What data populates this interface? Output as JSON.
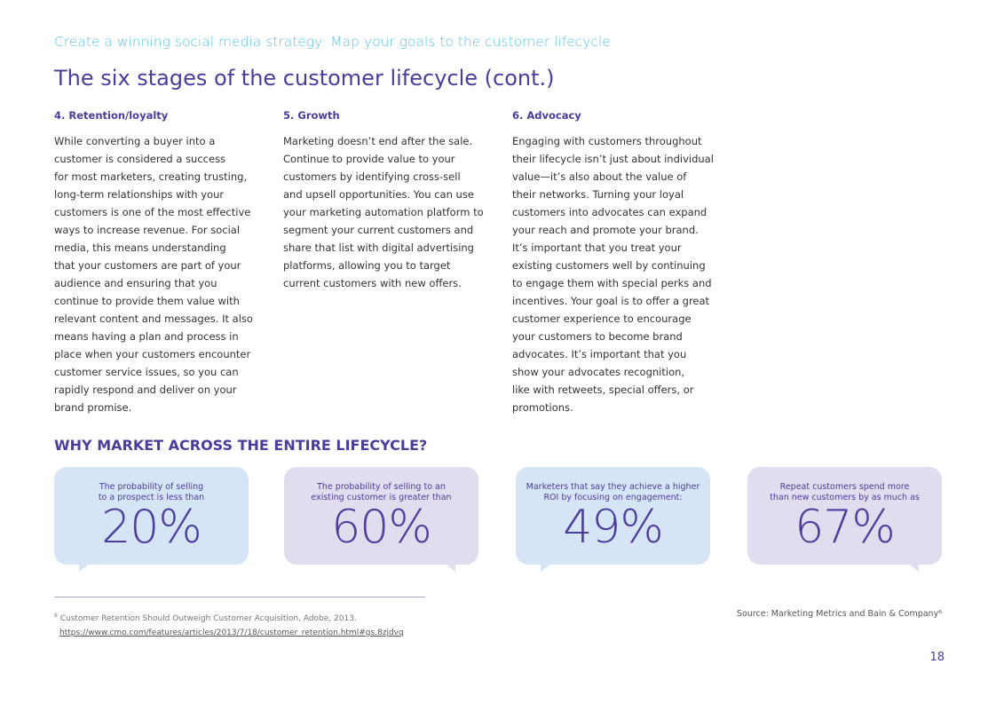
{
  "header": {
    "kicker": "Create a winning social media strategy: Map your goals to the customer lifecycle",
    "title": "The six stages of the customer lifecycle (cont.)"
  },
  "columns": [
    {
      "heading": "4. Retention/loyalty",
      "lines": [
        "While converting a buyer into a",
        "customer is considered a success",
        "for most marketers, creating trusting,",
        "long-term relationships with your",
        "customers is one of the most effective",
        "ways to increase revenue. For social",
        "media, this means understanding",
        "that your customers are part of your",
        "audience and ensuring that you",
        "continue to provide them value with",
        "relevant content and messages. It also",
        "means having a plan and process in",
        "place when your customers encounter",
        "customer service issues, so you can",
        "rapidly respond and deliver on your",
        "brand promise."
      ]
    },
    {
      "heading": "5. Growth",
      "lines": [
        "Marketing doesn’t end after the sale.",
        "Continue to provide value to your",
        "customers by identifying cross-sell",
        "and upsell opportunities. You can use",
        "your marketing automation platform to",
        "segment your current customers and",
        "share that list with digital advertising",
        "platforms, allowing you to target",
        "current customers with new offers."
      ]
    },
    {
      "heading": "6. Advocacy",
      "lines": [
        "Engaging with customers throughout",
        "their lifecycle isn’t just about individual",
        "value—it’s also about the value of",
        "their networks. Turning your loyal",
        "customers into advocates can expand",
        "your reach and promote your brand.",
        "It’s important that you treat your",
        "existing customers well by continuing",
        "to engage them with special perks and",
        "incentives. Your goal is to offer a great",
        "customer experience to encourage",
        "your customers to become brand",
        "advocates. It’s important that you",
        "show your advocates recognition,",
        "like with retweets, special offers, or",
        "promotions."
      ]
    }
  ],
  "why": {
    "heading": "WHY MARKET ACROSS THE ENTIRE LIFECYCLE?"
  },
  "stats": [
    {
      "caption_1": "The probability of selling",
      "caption_2": "to a prospect is less than",
      "value": "20%",
      "color": "#d5e5f6"
    },
    {
      "caption_1": "The probability of selling to an",
      "caption_2": "existing customer is greater than",
      "value": "60%",
      "color": "#e1ddef"
    },
    {
      "caption_1": "Marketers that say they achieve a higher",
      "caption_2": "ROI by focusing on engagement:",
      "value": "49%",
      "color": "#d5e5f6"
    },
    {
      "caption_1": "Repeat customers spend more",
      "caption_2": "than new customers by as much as",
      "value": "67%",
      "color": "#e1ddef"
    }
  ],
  "footnote": {
    "marker": "6",
    "text": "Customer Retention Should Outweigh Customer Acquisition, Adobe, 2013.",
    "url": "https://www.cmo.com/features/articles/2013/7/18/customer_retention.html#gs.8zjdvq"
  },
  "source": "Source: Marketing Metrics and Bain & Company⁶",
  "page_number": "18",
  "colors": {
    "accent": "#4b3c9e",
    "kicker": "#5ec3e4"
  }
}
